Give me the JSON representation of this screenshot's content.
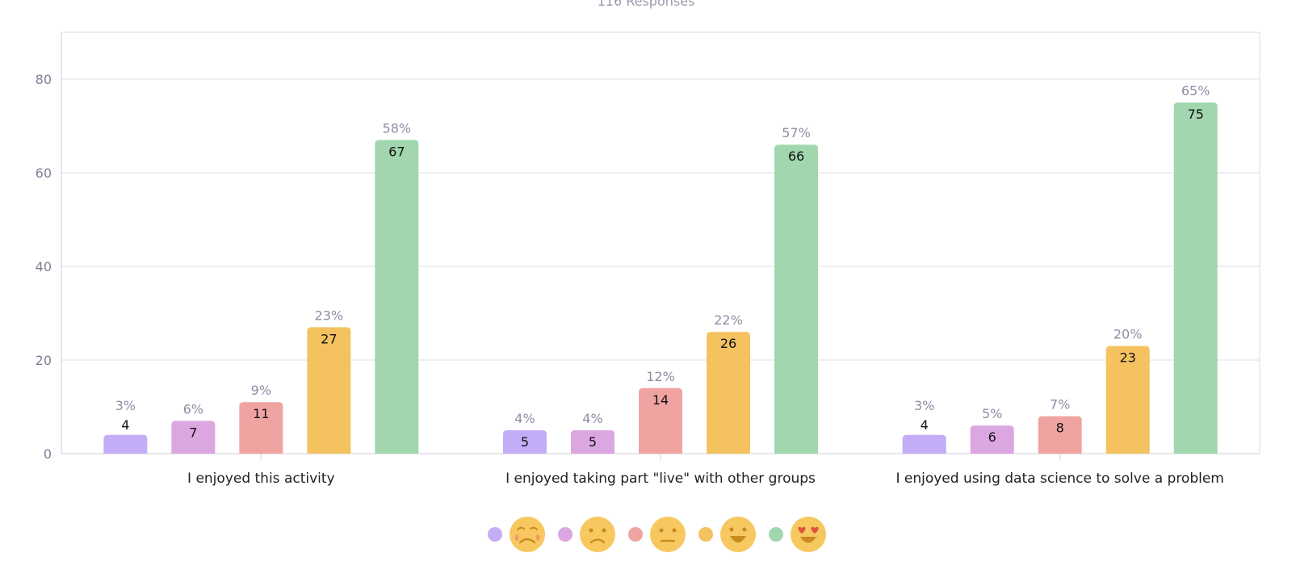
{
  "subtitle": "116 Responses",
  "chart_data": {
    "type": "bar",
    "ylim": [
      0,
      90
    ],
    "yticks": [
      0,
      20,
      40,
      60,
      80
    ],
    "grid": true,
    "legend_position": "bottom-center",
    "categories": [
      "I enjoyed this activity",
      "I enjoyed taking part \"live\" with other groups",
      "I enjoyed using data science to solve a problem"
    ],
    "series": [
      {
        "icon": "very-sad-face-icon",
        "color": "#c4adf7",
        "values": [
          4,
          5,
          4
        ],
        "percents": [
          "3%",
          "4%",
          "3%"
        ]
      },
      {
        "icon": "sad-face-icon",
        "color": "#dca6e0",
        "values": [
          7,
          5,
          6
        ],
        "percents": [
          "6%",
          "4%",
          "5%"
        ]
      },
      {
        "icon": "neutral-face-icon",
        "color": "#efa4a2",
        "values": [
          11,
          14,
          8
        ],
        "percents": [
          "9%",
          "12%",
          "7%"
        ]
      },
      {
        "icon": "happy-face-icon",
        "color": "#f4c25f",
        "values": [
          27,
          26,
          23
        ],
        "percents": [
          "23%",
          "22%",
          "20%"
        ]
      },
      {
        "icon": "heart-eyes-face-icon",
        "color": "#a1d6ae",
        "values": [
          67,
          66,
          75
        ],
        "percents": [
          "58%",
          "57%",
          "65%"
        ]
      }
    ]
  }
}
